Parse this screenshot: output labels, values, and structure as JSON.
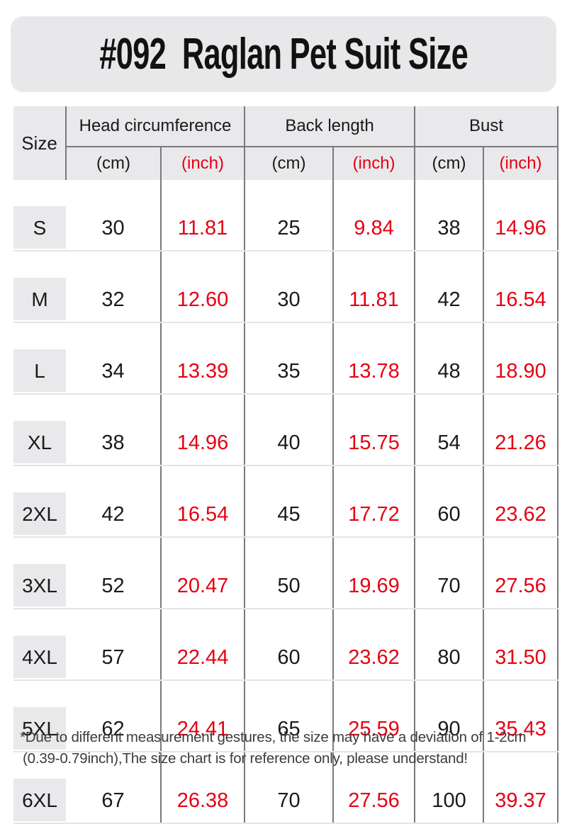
{
  "title": {
    "text": "#092  Raglan Pet Suit Size"
  },
  "table": {
    "size_header": "Size",
    "groups": [
      {
        "label": "Head circumference"
      },
      {
        "label": "Back length"
      },
      {
        "label": "Bust"
      }
    ],
    "unit_cm": "(cm)",
    "unit_inch": "(inch)",
    "rows": [
      {
        "size": "S",
        "head_cm": "30",
        "head_inch": "11.81",
        "back_cm": "25",
        "back_inch": "9.84",
        "bust_cm": "38",
        "bust_inch": "14.96"
      },
      {
        "size": "M",
        "head_cm": "32",
        "head_inch": "12.60",
        "back_cm": "30",
        "back_inch": "11.81",
        "bust_cm": "42",
        "bust_inch": "16.54"
      },
      {
        "size": "L",
        "head_cm": "34",
        "head_inch": "13.39",
        "back_cm": "35",
        "back_inch": "13.78",
        "bust_cm": "48",
        "bust_inch": "18.90"
      },
      {
        "size": "XL",
        "head_cm": "38",
        "head_inch": "14.96",
        "back_cm": "40",
        "back_inch": "15.75",
        "bust_cm": "54",
        "bust_inch": "21.26"
      },
      {
        "size": "2XL",
        "head_cm": "42",
        "head_inch": "16.54",
        "back_cm": "45",
        "back_inch": "17.72",
        "bust_cm": "60",
        "bust_inch": "23.62"
      },
      {
        "size": "3XL",
        "head_cm": "52",
        "head_inch": "20.47",
        "back_cm": "50",
        "back_inch": "19.69",
        "bust_cm": "70",
        "bust_inch": "27.56"
      },
      {
        "size": "4XL",
        "head_cm": "57",
        "head_inch": "22.44",
        "back_cm": "60",
        "back_inch": "23.62",
        "bust_cm": "80",
        "bust_inch": "31.50"
      },
      {
        "size": "5XL",
        "head_cm": "62",
        "head_inch": "24.41",
        "back_cm": "65",
        "back_inch": "25.59",
        "bust_cm": "90",
        "bust_inch": "35.43"
      },
      {
        "size": "6XL",
        "head_cm": "67",
        "head_inch": "26.38",
        "back_cm": "70",
        "back_inch": "27.56",
        "bust_cm": "100",
        "bust_inch": "39.37"
      }
    ]
  },
  "footnote": {
    "line1": "*Due to different measurement gestures, the size may have a deviation of 1-2cm",
    "line2": "(0.39-0.79inch),The size chart is for reference only, please understand!"
  },
  "colors": {
    "accent_red": "#e60012",
    "header_bg": "#e9e9ec",
    "banner_bg": "#e8e8ea",
    "border_dark": "#7a7a7d",
    "border_light": "#e4e4e6",
    "text_black": "#1a1a1a"
  },
  "chart_data": {
    "type": "table",
    "title": "#092 Raglan Pet Suit Size",
    "columns": [
      "Size",
      "Head circumference (cm)",
      "Head circumference (inch)",
      "Back length (cm)",
      "Back length (inch)",
      "Bust (cm)",
      "Bust (inch)"
    ],
    "rows": [
      [
        "S",
        30,
        11.81,
        25,
        9.84,
        38,
        14.96
      ],
      [
        "M",
        32,
        12.6,
        30,
        11.81,
        42,
        16.54
      ],
      [
        "L",
        34,
        13.39,
        35,
        13.78,
        48,
        18.9
      ],
      [
        "XL",
        38,
        14.96,
        40,
        15.75,
        54,
        21.26
      ],
      [
        "2XL",
        42,
        16.54,
        45,
        17.72,
        60,
        23.62
      ],
      [
        "3XL",
        52,
        20.47,
        50,
        19.69,
        70,
        27.56
      ],
      [
        "4XL",
        57,
        22.44,
        60,
        23.62,
        80,
        31.5
      ],
      [
        "5XL",
        62,
        24.41,
        65,
        25.59,
        90,
        35.43
      ],
      [
        "6XL",
        67,
        26.38,
        70,
        27.56,
        100,
        39.37
      ]
    ],
    "notes": "inch columns shown in red; layout: grouped header with cm/inch sub-columns"
  }
}
